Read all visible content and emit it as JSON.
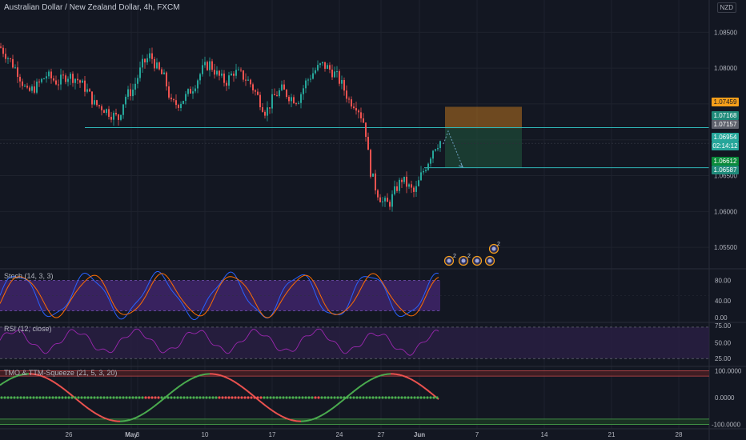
{
  "header": {
    "symbol_title": "Australian Dollar / New Zealand Dollar, 4h, FXCM",
    "currency_badge": "NZD"
  },
  "price_axis": {
    "ticks": [
      "1.08500",
      "1.08000",
      "1.07500",
      "1.07000",
      "1.06500",
      "1.06000",
      "1.05500"
    ]
  },
  "price_tags": {
    "entry_top": "1.07459",
    "level_upper": "1.07168",
    "level_upper_2": "1.07157",
    "current_price": "1.06954",
    "countdown": "02:14:12",
    "target_1": "1.06612",
    "target_2": "1.06587"
  },
  "time_axis": {
    "labels": [
      "26",
      "May",
      "3",
      "10",
      "17",
      "24",
      "27",
      "Jun",
      "7",
      "14",
      "21",
      "28"
    ]
  },
  "indicators": {
    "stoch": {
      "label": "Stoch (14, 3, 3)",
      "ticks": [
        "80.00",
        "40.00",
        "0.00"
      ]
    },
    "rsi": {
      "label": "RSI (12, close)",
      "ticks": [
        "75.00",
        "50.00",
        "25.00"
      ]
    },
    "tmo": {
      "label": "TMO & TTM-Squeeze (21, 5, 3, 20)",
      "ticks": [
        "100.0000",
        "0.0000",
        "-100.0000"
      ]
    }
  },
  "event_badges": [
    "2",
    "2",
    "2"
  ],
  "colors": {
    "background": "#131722",
    "bull": "#26a69a",
    "bear": "#ef5350",
    "horizontal_line": "#2fb5b5",
    "stop_zone": "#b9721f",
    "target_zone": "#1e4f3a",
    "stoch_fill": "#3d2466",
    "tmo_green": "#4caf50",
    "tmo_red": "#ef5350"
  },
  "chart_data": {
    "type": "candlestick",
    "title": "Australian Dollar / New Zealand Dollar, 4h, FXCM",
    "ylabel": "NZD",
    "ylim": [
      1.052,
      1.0895
    ],
    "horizontal_levels": [
      1.0717,
      1.0661
    ],
    "position": {
      "entry": 1.0716,
      "stop": 1.0746,
      "target": 1.0661
    },
    "price_path": [
      [
        0,
        1.083
      ],
      [
        10,
        1.0815
      ],
      [
        22,
        1.0795
      ],
      [
        34,
        1.0765
      ],
      [
        46,
        1.0775
      ],
      [
        58,
        1.079
      ],
      [
        72,
        1.078
      ],
      [
        84,
        1.079
      ],
      [
        96,
        1.0785
      ],
      [
        108,
        1.077
      ],
      [
        118,
        1.075
      ],
      [
        128,
        1.0745
      ],
      [
        140,
        1.0735
      ],
      [
        148,
        1.073
      ],
      [
        156,
        1.076
      ],
      [
        166,
        1.077
      ],
      [
        178,
        1.0805
      ],
      [
        188,
        1.0818
      ],
      [
        196,
        1.08
      ],
      [
        206,
        1.0785
      ],
      [
        214,
        1.075
      ],
      [
        222,
        1.075
      ],
      [
        232,
        1.076
      ],
      [
        242,
        1.0775
      ],
      [
        254,
        1.08
      ],
      [
        262,
        1.0806
      ],
      [
        272,
        1.079
      ],
      [
        282,
        1.078
      ],
      [
        292,
        1.0795
      ],
      [
        302,
        1.079
      ],
      [
        312,
        1.078
      ],
      [
        322,
        1.076
      ],
      [
        332,
        1.0738
      ],
      [
        342,
        1.076
      ],
      [
        352,
        1.077
      ],
      [
        362,
        1.076
      ],
      [
        372,
        1.0755
      ],
      [
        382,
        1.078
      ],
      [
        392,
        1.0795
      ],
      [
        402,
        1.0805
      ],
      [
        410,
        1.08
      ],
      [
        420,
        1.079
      ],
      [
        428,
        1.0775
      ],
      [
        436,
        1.0755
      ],
      [
        446,
        1.0748
      ],
      [
        456,
        1.072
      ],
      [
        462,
        1.066
      ],
      [
        470,
        1.063
      ],
      [
        478,
        1.0613
      ],
      [
        486,
        1.061
      ],
      [
        494,
        1.063
      ],
      [
        502,
        1.0645
      ],
      [
        510,
        1.0635
      ],
      [
        518,
        1.0625
      ],
      [
        526,
        1.065
      ],
      [
        534,
        1.0668
      ],
      [
        542,
        1.069
      ],
      [
        550,
        1.0698
      ]
    ],
    "stoch_range": [
      0,
      100
    ],
    "rsi_range": [
      15,
      80
    ],
    "tmo_range": [
      -110,
      110
    ]
  }
}
